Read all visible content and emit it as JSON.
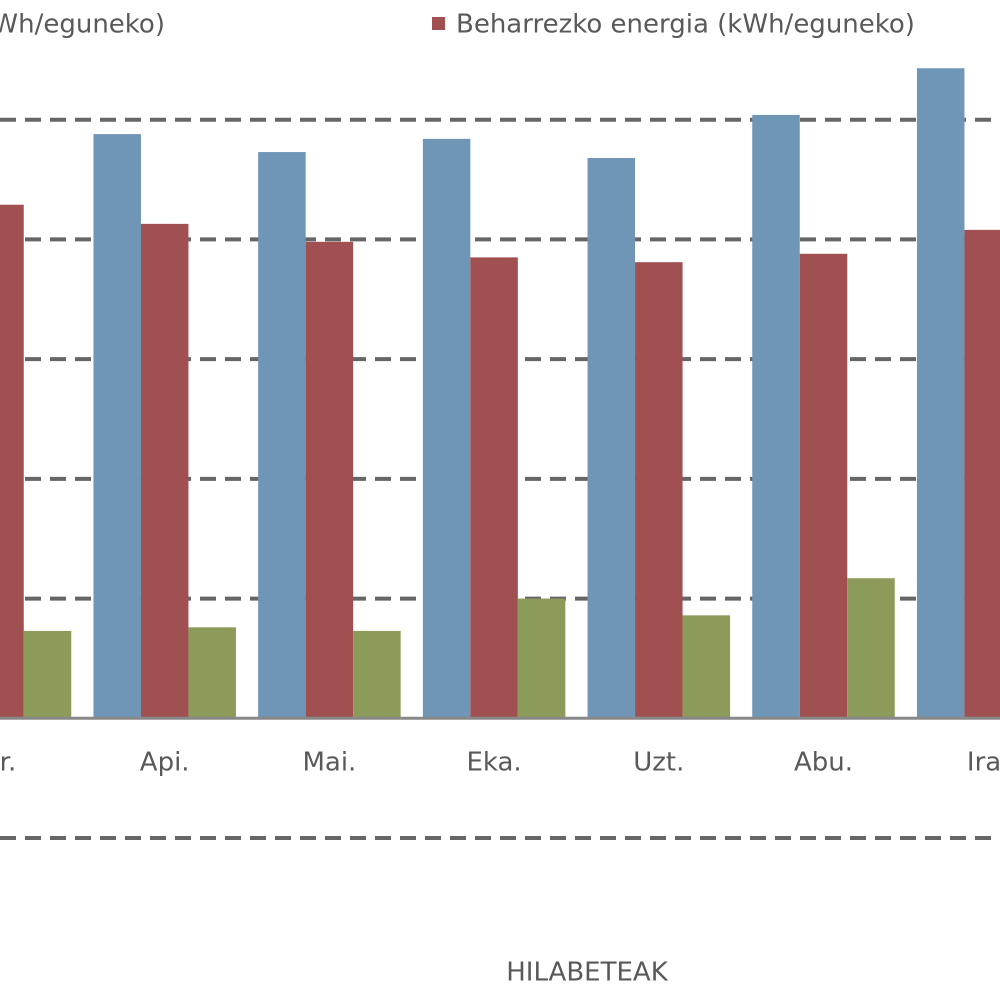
{
  "chart_data": {
    "type": "bar",
    "categories": [
      "ar.",
      "Api.",
      "Mai.",
      "Eka.",
      "Uzt.",
      "Abu.",
      "Ira."
    ],
    "series": [
      {
        "name": "Wh/eguneko)",
        "color": "#7096b7",
        "values": [
          null,
          4.88,
          4.73,
          4.84,
          4.68,
          5.04,
          5.43
        ]
      },
      {
        "name": "Beharrezko energia (kWh/eguneko)",
        "color": "#a05050",
        "values": [
          4.29,
          4.13,
          3.98,
          3.85,
          3.81,
          3.88,
          4.08
        ]
      },
      {
        "color": "#8c9b5a",
        "values": [
          0.73,
          0.76,
          0.73,
          1.0,
          0.86,
          1.17,
          null
        ]
      }
    ],
    "x_label": "HILABETEAK",
    "ylim": [
      -1,
      6
    ],
    "gridlines": [
      -1,
      1,
      2,
      3,
      4,
      5
    ],
    "grid": true
  }
}
